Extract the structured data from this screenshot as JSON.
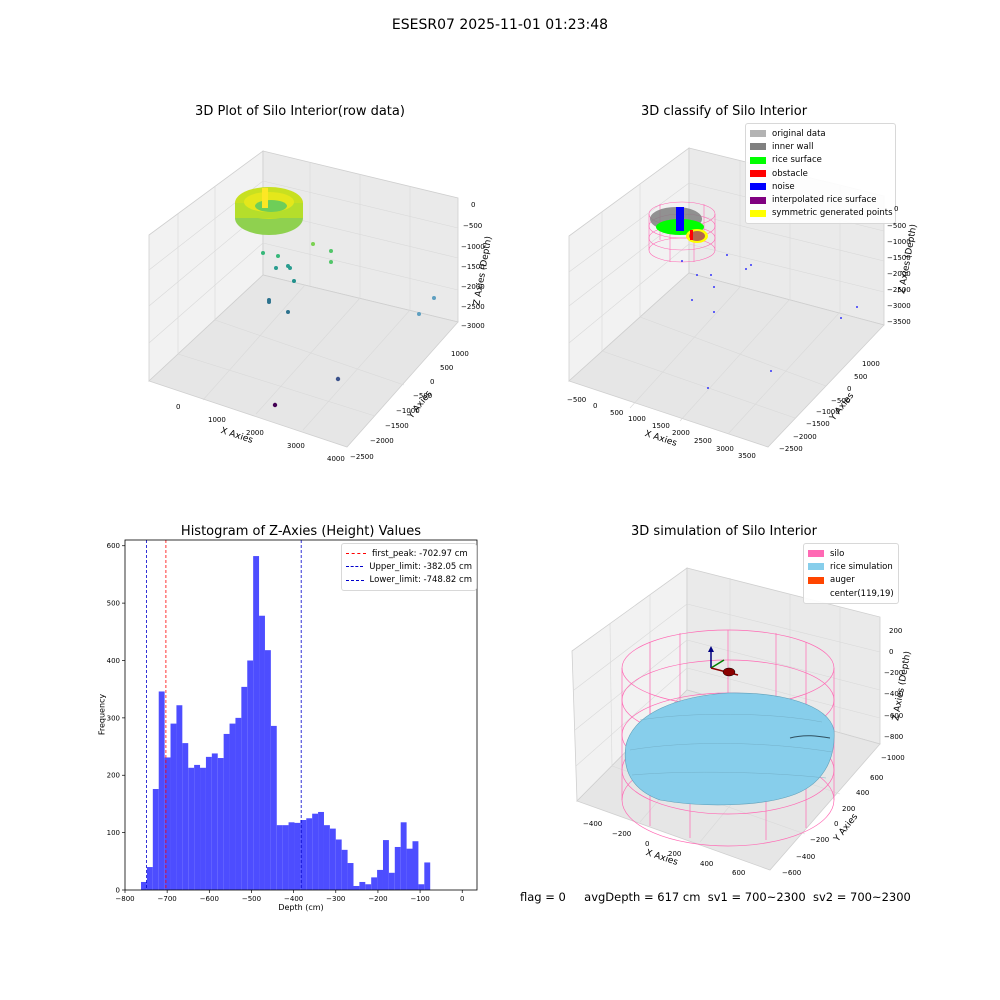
{
  "suptitle": "ESESR07 2025-11-01 01:23:48",
  "panels": {
    "raw": {
      "title": "3D Plot of Silo Interior(row data)",
      "xlabel": "X Axies",
      "ylabel": "Y Axies",
      "zlabel": "Z Axies (Depth)",
      "xticks": [
        "0",
        "1000",
        "2000",
        "3000",
        "4000"
      ],
      "yticks": [
        "1000",
        "500",
        "0",
        "−500",
        "−1000",
        "−1500",
        "−2000",
        "−2500"
      ],
      "zticks": [
        "0",
        "−500",
        "−1000",
        "−1500",
        "−2000",
        "−2500",
        "−3000"
      ]
    },
    "classify": {
      "title": "3D classify of Silo Interior",
      "xlabel": "X Axies",
      "ylabel": "Y Axies",
      "zlabel": "Z Axies (Depth)",
      "xticks": [
        "−500",
        "0",
        "500",
        "1000",
        "1500",
        "2000",
        "2500",
        "3000",
        "3500"
      ],
      "yticks": [
        "1000",
        "500",
        "0",
        "−500",
        "−1000",
        "−1500",
        "−2000",
        "−2500"
      ],
      "zticks": [
        "0",
        "−500",
        "−1000",
        "−1500",
        "−2000",
        "−2500",
        "−3000",
        "−3500"
      ],
      "legend": [
        {
          "label": "original data",
          "color": "#b3b3b3"
        },
        {
          "label": "inner wall",
          "color": "#808080"
        },
        {
          "label": "rice surface",
          "color": "#00ff00"
        },
        {
          "label": "obstacle",
          "color": "#ff0000"
        },
        {
          "label": "noise",
          "color": "#0000ff"
        },
        {
          "label": "interpolated rice surface",
          "color": "#800080"
        },
        {
          "label": "symmetric generated points",
          "color": "#ffff00"
        }
      ]
    },
    "simulation": {
      "title": "3D simulation of Silo Interior",
      "xlabel": "X Axies",
      "ylabel": "Y Axies",
      "zlabel": "Z Axies (Depth)",
      "xticks": [
        "−400",
        "−200",
        "0",
        "200",
        "400",
        "600"
      ],
      "yticks": [
        "600",
        "400",
        "200",
        "0",
        "−200",
        "−400",
        "−600"
      ],
      "zticks": [
        "200",
        "0",
        "−200",
        "−400",
        "−600",
        "−800",
        "−1000"
      ],
      "legend": [
        {
          "label": "silo",
          "color": "#ff69b4"
        },
        {
          "label": "rice simulation",
          "color": "#87ceeb"
        },
        {
          "label": "auger",
          "color": "#ff4500"
        },
        {
          "label": "center(119,19)",
          "color": "#ffffff"
        }
      ]
    }
  },
  "footer": {
    "flag": "flag = 0",
    "avg": "avgDepth = 617 cm",
    "sv1": "sv1 = 700~2300",
    "sv2": "sv2 = 700~2300"
  },
  "chart_data": {
    "type": "bar",
    "title": "Histogram of Z-Axies (Height) Values",
    "xlabel": "Depth (cm)",
    "ylabel": "Frequency",
    "xlim": [
      -800,
      35
    ],
    "ylim": [
      0,
      610
    ],
    "xticks": [
      -800,
      -700,
      -600,
      -500,
      -400,
      -300,
      -200,
      -100,
      0
    ],
    "xtick_labels": [
      "−800",
      "−700",
      "−600",
      "−500",
      "−400",
      "−300",
      "−200",
      "−100",
      "0"
    ],
    "yticks": [
      0,
      100,
      200,
      300,
      400,
      500,
      600
    ],
    "bin_start": -762,
    "bin_width": 14,
    "values": [
      14,
      40,
      176,
      346,
      231,
      290,
      322,
      256,
      213,
      218,
      213,
      232,
      238,
      230,
      272,
      290,
      300,
      354,
      400,
      582,
      478,
      418,
      286,
      113,
      113,
      118,
      117,
      122,
      125,
      133,
      136,
      113,
      107,
      88,
      70,
      47,
      7,
      14,
      10,
      22,
      35,
      87,
      30,
      75,
      118,
      72,
      85,
      10,
      48
    ],
    "bar_color": "#4d4dff",
    "lines": [
      {
        "label": "first_peak: -702.97 cm",
        "x": -702.97,
        "color": "#ff0000"
      },
      {
        "label": "Upper_limit: -382.05 cm",
        "x": -382.05,
        "color": "#0000cc"
      },
      {
        "label": "Lower_limit: -748.82 cm",
        "x": -748.82,
        "color": "#0000cc"
      }
    ],
    "legend_position": "upper right"
  }
}
